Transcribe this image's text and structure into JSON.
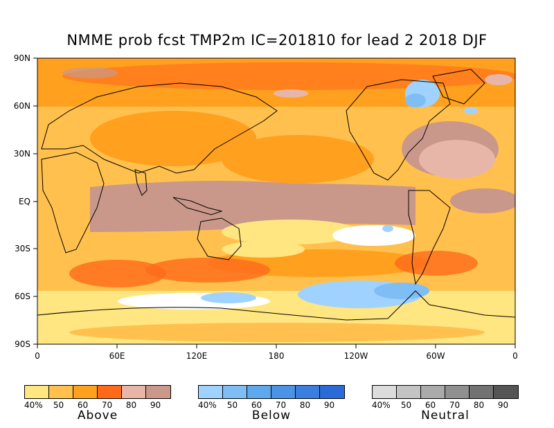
{
  "title": "NMME prob fcst TMP2m IC=201810 for lead 2 2018 DJF",
  "y_axis_labels": [
    "90N",
    "60N",
    "30N",
    "EQ",
    "30S",
    "60S",
    "90S"
  ],
  "x_axis_labels": [
    "0",
    "60E",
    "120E",
    "180",
    "120W",
    "60W",
    "0"
  ],
  "colors": {
    "above": [
      "#ffe680",
      "#ffc04d",
      "#ffa01e",
      "#ff6a1a",
      "#e8b6a8",
      "#c9988a"
    ],
    "below": [
      "#9fd2ff",
      "#7fbef5",
      "#5ea8ee",
      "#4b93e6",
      "#3a7fe0",
      "#2a6bd8"
    ],
    "neutral": [
      "#dcdcdc",
      "#c4c4c4",
      "#aaaaaa",
      "#909090",
      "#727272",
      "#555555"
    ],
    "land": "#000000"
  },
  "legends": [
    {
      "key": "above",
      "name": "Above",
      "ticks": [
        "40%",
        "50",
        "60",
        "70",
        "80",
        "90"
      ]
    },
    {
      "key": "below",
      "name": "Below",
      "ticks": [
        "40%",
        "50",
        "60",
        "70",
        "80",
        "90"
      ]
    },
    {
      "key": "neutral",
      "name": "Neutral",
      "ticks": [
        "40%",
        "50",
        "60",
        "70",
        "80",
        "90"
      ]
    }
  ]
}
